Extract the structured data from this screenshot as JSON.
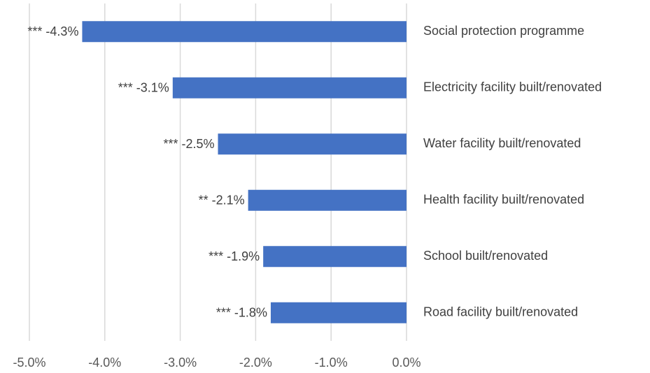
{
  "chart_data": {
    "type": "bar",
    "orientation": "horizontal",
    "categories": [
      "Social protection programme",
      "Electricity facility built/renovated",
      "Water facility built/renovated",
      "Health facility built/renovated",
      "School built/renovated",
      "Road facility built/renovated"
    ],
    "values": [
      -4.3,
      -3.1,
      -2.5,
      -2.1,
      -1.9,
      -1.8
    ],
    "value_labels": [
      "*** -4.3%",
      "*** -3.1%",
      "*** -2.5%",
      "** -2.1%",
      "*** -1.9%",
      "*** -1.8%"
    ],
    "color": "#4472c4",
    "xlim": [
      -5,
      0
    ],
    "xticks": [
      {
        "value": -5,
        "label": "-5.0%"
      },
      {
        "value": -4,
        "label": "-4.0%"
      },
      {
        "value": -3,
        "label": "-3.0%"
      },
      {
        "value": -2,
        "label": "-2.0%"
      },
      {
        "value": -1,
        "label": "-1.0%"
      },
      {
        "value": 0,
        "label": "0.0%"
      }
    ],
    "grid": true
  }
}
